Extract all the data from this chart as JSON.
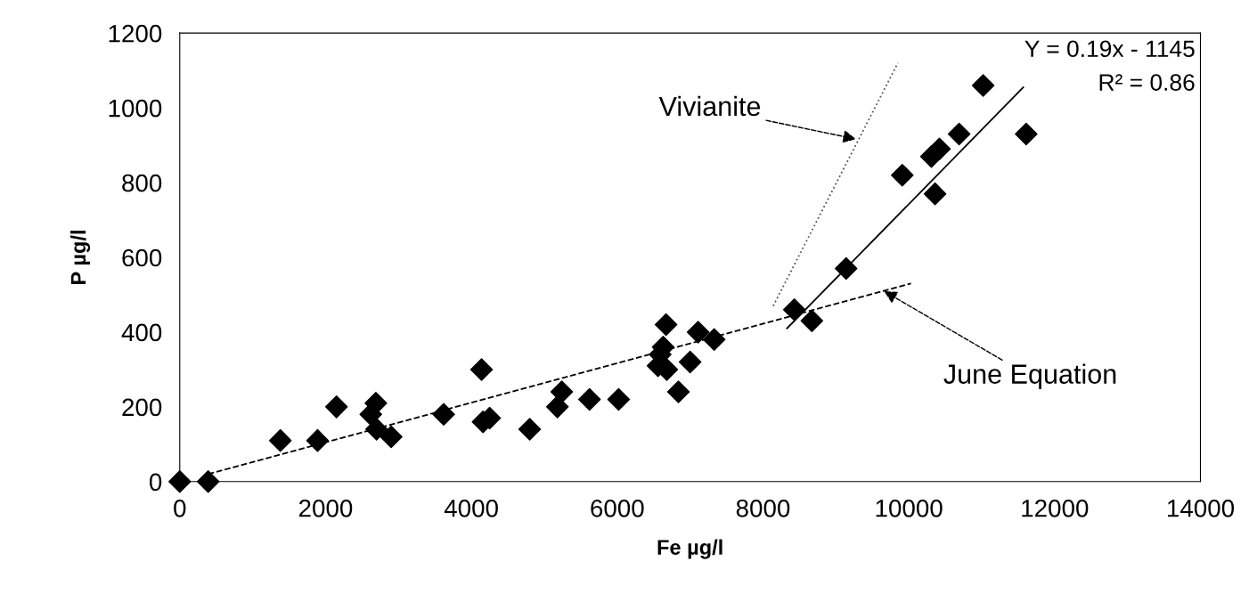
{
  "chart_data": {
    "type": "scatter",
    "xlabel": "Fe µg/l",
    "ylabel": "P µg/l",
    "xlim": [
      0,
      14000
    ],
    "ylim": [
      0,
      1200
    ],
    "xticks": [
      0,
      2000,
      4000,
      6000,
      8000,
      10000,
      12000,
      14000
    ],
    "yticks": [
      0,
      200,
      400,
      600,
      800,
      1000,
      1200
    ],
    "grid": false,
    "legend": false,
    "series": [
      {
        "color": "#000000",
        "marker": "diamond",
        "x": [
          0,
          390,
          1380,
          1890,
          2150,
          2690,
          2620,
          2700,
          2900,
          3620,
          4140,
          4160,
          4250,
          4800,
          5240,
          5180,
          5620,
          6020,
          6670,
          6630,
          6590,
          6560,
          6680,
          7000,
          6840,
          7110,
          7330,
          8430,
          8670,
          9140,
          9910,
          10360,
          10310,
          10420,
          10690,
          11020,
          11610
        ],
        "values": [
          0,
          0,
          110,
          110,
          200,
          210,
          180,
          140,
          120,
          180,
          300,
          160,
          170,
          140,
          240,
          200,
          220,
          220,
          420,
          360,
          340,
          310,
          300,
          320,
          240,
          400,
          380,
          460,
          430,
          570,
          820,
          770,
          870,
          890,
          930,
          1060,
          930
        ]
      },
      {
        "type": "line",
        "color": "#000000",
        "line_style": "dashed",
        "marker": "none",
        "x": [
          390,
          10030
        ],
        "values": [
          20,
          530
        ]
      },
      {
        "type": "line",
        "color": "#555555",
        "line_style": "dotted",
        "marker": "none",
        "x": [
          8140,
          9850
        ],
        "values": [
          470,
          1120
        ]
      },
      {
        "type": "line",
        "color": "#000000",
        "line_style": "solid",
        "marker": "none",
        "x": [
          8330,
          11570
        ],
        "values": [
          410,
          1055
        ]
      }
    ],
    "annotations": [
      {
        "text": "Vivianite",
        "x": 9310,
        "y": 915
      },
      {
        "text": "June Equation",
        "x": 9630,
        "y": 513
      },
      "Y = 0.19x - 1145",
      "R² = 0.86"
    ]
  }
}
